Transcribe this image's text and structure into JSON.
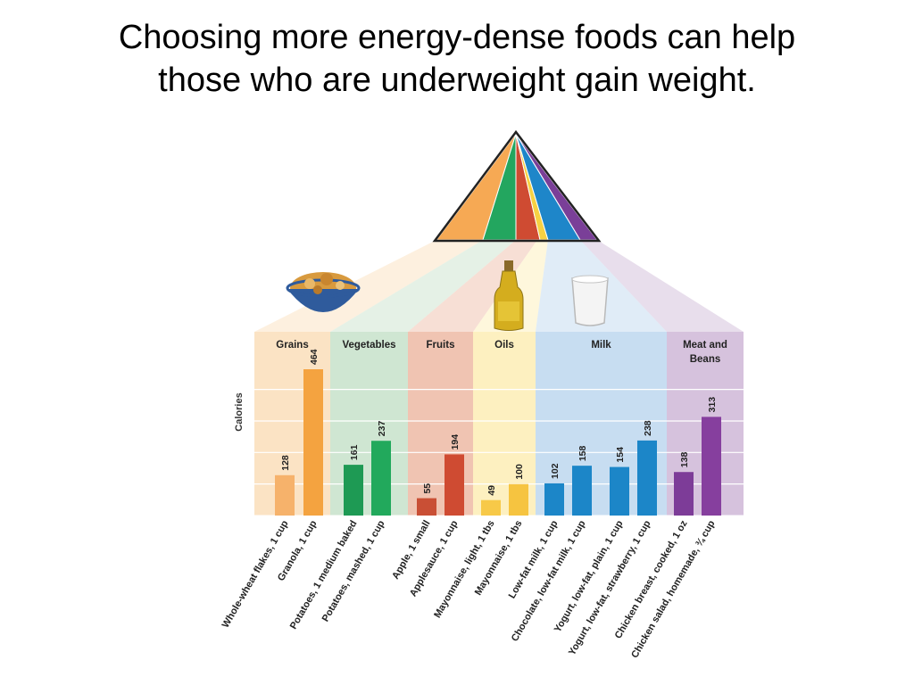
{
  "slide": {
    "title_line1": "Choosing more energy-dense foods can help",
    "title_line2": "those who are underweight gain weight."
  },
  "chart_data": {
    "type": "bar",
    "title": "",
    "xlabel": "",
    "ylabel": "Calories",
    "ylim": [
      0,
      500
    ],
    "grid": true,
    "categories": [
      "Whole-wheat flakes, 1 cup",
      "Granola, 1 cup",
      "Potatoes, 1 medium baked",
      "Potatoes, mashed, 1 cup",
      "Apple, 1 small",
      "Applesauce, 1 cup",
      "Mayonnaise, light, 1 tbs",
      "Mayonnaise, 1 tbs",
      "Low-fat milk, 1 cup",
      "Chocolate, low-fat milk, 1 cup",
      "Yogurt, low-fat, plain, 1 cup",
      "Yogurt, low-fat, strawberry, 1 cup",
      "Chicken breast, cooked, 1 oz",
      "Chicken salad, homemade, ¾ cup"
    ],
    "values": [
      128,
      464,
      161,
      237,
      55,
      194,
      49,
      100,
      102,
      158,
      154,
      238,
      138,
      313
    ],
    "groups": [
      {
        "name": "Grains",
        "members": [
          0,
          1
        ],
        "bar_colors": [
          "#f6b26b",
          "#f4a340"
        ],
        "bg_color": "#fbe3c4"
      },
      {
        "name": "Vegetables",
        "members": [
          2,
          3
        ],
        "bar_colors": [
          "#1e9a54",
          "#22a95c"
        ],
        "bg_color": "#cfe6d2"
      },
      {
        "name": "Fruits",
        "members": [
          4,
          5
        ],
        "bar_colors": [
          "#c94f35",
          "#cf4b32"
        ],
        "bg_color": "#f0c4b2"
      },
      {
        "name": "Oils",
        "members": [
          6,
          7
        ],
        "bar_colors": [
          "#f7c948",
          "#f6c440"
        ],
        "bg_color": "#fdf0c0"
      },
      {
        "name": "Milk",
        "members": [
          8,
          9,
          10,
          11
        ],
        "bar_colors": [
          "#1c86c8",
          "#1c86c8",
          "#1c86c8",
          "#1c86c8"
        ],
        "bg_color": "#c7ddf1"
      },
      {
        "name": "Meat and Beans",
        "members": [
          12,
          13
        ],
        "bar_colors": [
          "#7d3c98",
          "#863f9e"
        ],
        "bg_color": "#d6c2dd"
      }
    ],
    "pyramid_colors": [
      "#f6a954",
      "#23a65f",
      "#cf4b32",
      "#f6d143",
      "#1e86c9",
      "#7a3f98"
    ],
    "icons": [
      "cereal-bowl-icon",
      "oil-bottle-icon",
      "milk-glass-icon"
    ]
  }
}
